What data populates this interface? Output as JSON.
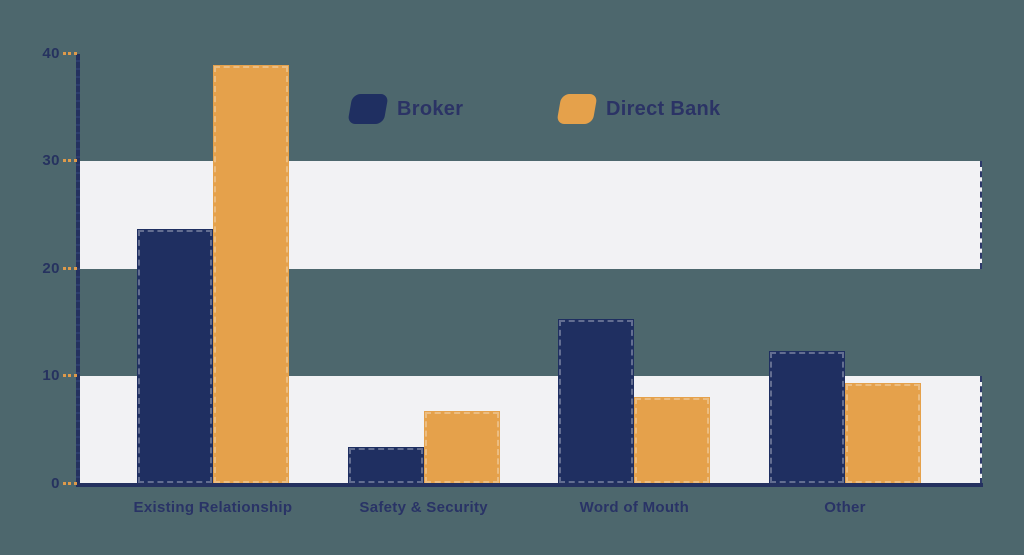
{
  "chart_data": {
    "type": "bar",
    "title": "",
    "xlabel": "",
    "ylabel": "",
    "categories": [
      "Existing Relationship",
      "Safety & Security",
      "Word of Mouth",
      "Other"
    ],
    "series": [
      {
        "name": "Broker",
        "color": "#1F2F61",
        "values": [
          23.7,
          3.4,
          15.3,
          12.3
        ]
      },
      {
        "name": "Direct Bank",
        "color": "#E5A14B",
        "values": [
          39.0,
          6.8,
          8.1,
          9.4
        ]
      }
    ],
    "ylim": [
      0,
      40
    ],
    "yticks": [
      0,
      10,
      20,
      30,
      40
    ],
    "legend_position": "top-center",
    "grid": "alternating horizontal white bands at 0-10 and 20-30",
    "background_color": "#4D676D",
    "band_color": "#F2F2F4",
    "axis_color": "#24315F",
    "tick_color": "#DE9A4B",
    "label_color": "#293366"
  },
  "legend": {
    "broker_label": "Broker",
    "direct_bank_label": "Direct Bank"
  }
}
